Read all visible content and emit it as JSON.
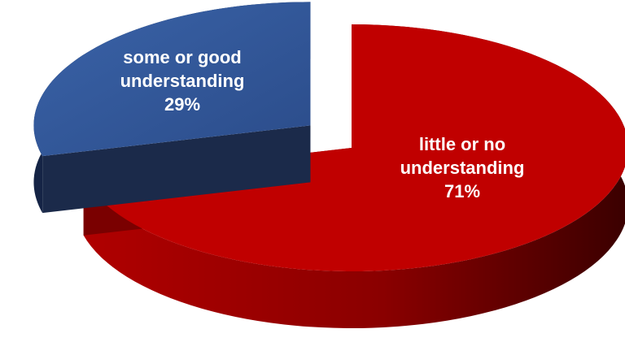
{
  "chart_data": {
    "type": "pie",
    "title": "",
    "slices": [
      {
        "label_lines": [
          "little or no",
          "understanding"
        ],
        "value": 71,
        "value_text": "71%",
        "color": "#C00000",
        "side_color": "#7A0000",
        "label_color": "#FFFFFF",
        "exploded": false
      },
      {
        "label_lines": [
          "some or good",
          "understanding"
        ],
        "value": 29,
        "value_text": "29%",
        "color": "#2E5090",
        "side_color": "#1B2A4A",
        "label_color": "#FFFFFF",
        "exploded": true
      }
    ],
    "style": "3d-exploded",
    "legend": "none"
  }
}
